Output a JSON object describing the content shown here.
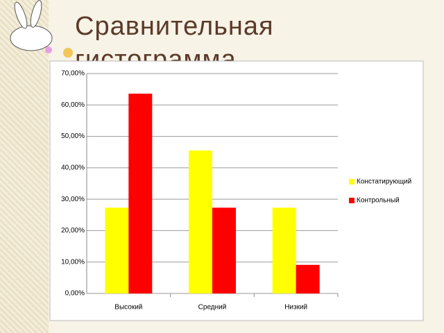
{
  "chart_data": {
    "type": "bar",
    "title": "Сравнительная гистограмма",
    "categories": [
      "Высокий",
      "Средний",
      "Низкий"
    ],
    "series": [
      {
        "name": "Констатирующий",
        "color": "#ffff00",
        "values": [
          27.3,
          45.5,
          27.3
        ]
      },
      {
        "name": "Контрольный",
        "color": "#ff0000",
        "values": [
          63.6,
          27.3,
          9.1
        ]
      }
    ],
    "ylim": [
      0,
      70
    ],
    "yticks": [
      {
        "value": 0,
        "label": "0,00%"
      },
      {
        "value": 10,
        "label": "10,00%"
      },
      {
        "value": 20,
        "label": "20,00%"
      },
      {
        "value": 30,
        "label": "30,00%"
      },
      {
        "value": 40,
        "label": "40,00%"
      },
      {
        "value": 50,
        "label": "50,00%"
      },
      {
        "value": 60,
        "label": "60,00%"
      },
      {
        "value": 70,
        "label": "70,00%"
      }
    ],
    "grid": true,
    "legend": "right"
  }
}
